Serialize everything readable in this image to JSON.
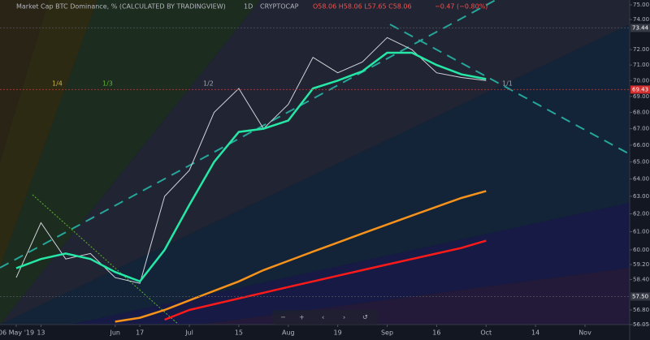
{
  "chart_data": {
    "type": "line",
    "title": "Market Cap BTC Dominance, % (CALCULATED BY TRADINGVIEW)",
    "interval": "1D",
    "source": "CRYPTOCAP",
    "ohlc_text": "O58.06 H58.06 L57.65 C58.06",
    "change_text": "−0.47 (−0.80%)",
    "annotations": [
      "1/4",
      "1/3",
      "1/2",
      "1/1"
    ],
    "log_scale": true,
    "grid": false,
    "categories": [
      "06 May '19",
      "13",
      null,
      null,
      "Jun",
      "17",
      null,
      "Jul",
      null,
      "15",
      null,
      "Aug",
      null,
      "19",
      null,
      "Sep",
      null,
      "16",
      null,
      "Oct",
      null,
      "14",
      null,
      "Nov"
    ],
    "series": [
      {
        "color": "#d1d4dc",
        "values": [
          58.5,
          61.5,
          59.5,
          59.8,
          58.5,
          58.2,
          63.0,
          64.5,
          68.0,
          69.5,
          67.0,
          68.5,
          71.5,
          70.5,
          71.2,
          72.8,
          72.0,
          70.5,
          70.2,
          70.0,
          null,
          null,
          null,
          null
        ]
      },
      {
        "color": "#26e8a6",
        "values": [
          59.0,
          59.5,
          59.8,
          59.5,
          58.8,
          58.3,
          60.0,
          62.5,
          65.0,
          66.8,
          67.0,
          67.5,
          69.5,
          70.0,
          70.6,
          71.8,
          71.8,
          71.0,
          70.4,
          70.1,
          null,
          null,
          null,
          null
        ]
      },
      {
        "color": "#f7931a",
        "values": [
          null,
          null,
          null,
          null,
          56.2,
          56.4,
          56.8,
          57.3,
          57.8,
          58.3,
          58.9,
          59.4,
          59.9,
          60.4,
          60.9,
          61.4,
          61.9,
          62.4,
          62.9,
          63.3,
          null,
          null,
          null,
          null
        ]
      },
      {
        "color": "#ff1a1a",
        "values": [
          null,
          null,
          null,
          null,
          null,
          null,
          56.3,
          56.8,
          57.1,
          57.4,
          57.7,
          58.0,
          58.3,
          58.6,
          58.9,
          59.2,
          59.5,
          59.8,
          60.1,
          60.5,
          null,
          null,
          null,
          null
        ]
      }
    ],
    "ylim": [
      56.05,
      75.0
    ],
    "yticks": [
      {
        "value": 75,
        "label": "75.00"
      },
      {
        "value": 74,
        "label": "74.00"
      },
      {
        "value": 72,
        "label": "72.00"
      },
      {
        "value": 71,
        "label": "71.00"
      },
      {
        "value": 70,
        "label": "70.00"
      },
      {
        "value": 69,
        "label": "69.00"
      },
      {
        "value": 68,
        "label": "68.00"
      },
      {
        "value": 67,
        "label": "67.00"
      },
      {
        "value": 66,
        "label": "66.00"
      },
      {
        "value": 65,
        "label": "65.00"
      },
      {
        "value": 64,
        "label": "64.00"
      },
      {
        "value": 63,
        "label": "63.00"
      },
      {
        "value": 62,
        "label": "62.00"
      },
      {
        "value": 61,
        "label": "61.00"
      },
      {
        "value": 60,
        "label": "60.00"
      },
      {
        "value": 59.2,
        "label": "59.20"
      },
      {
        "value": 58.4,
        "label": "58.40"
      },
      {
        "value": 56.8,
        "label": "56.80"
      },
      {
        "value": 56.05,
        "label": "56.05"
      }
    ],
    "price_labels": [
      {
        "value": 73.44,
        "color": "#363a45"
      },
      {
        "value": 69.43,
        "color": "#d32f2f"
      },
      {
        "value": 57.5,
        "label": "57.50",
        "color": "#363a45"
      }
    ]
  }
}
